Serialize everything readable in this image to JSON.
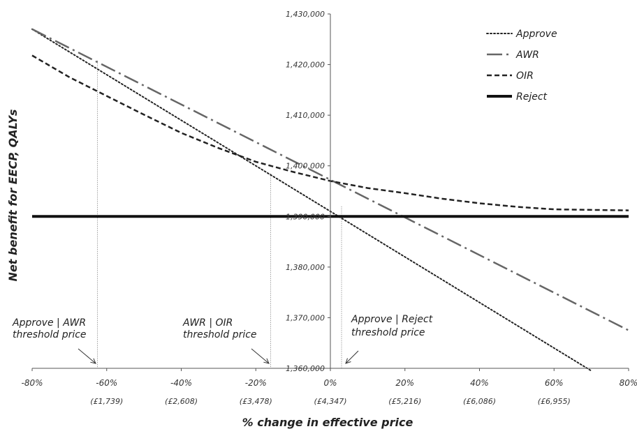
{
  "chart_data": {
    "type": "line",
    "xlabel": "% change in effective price",
    "ylabel": "Net benefit for EECP, QALYs",
    "xlim": [
      -80,
      80
    ],
    "ylim": [
      1360000,
      1430000
    ],
    "x_ticks": [
      "-80%",
      "-60%",
      "-40%",
      "-20%",
      "0%",
      "20%",
      "40%",
      "60%",
      "80%"
    ],
    "x_subticks": [
      "(£1,739)",
      "(£2,608)",
      "(£3,478)",
      "(£4,347)",
      "(£5,216)",
      "(£6,086)",
      "(£6,955)"
    ],
    "y_ticks": [
      "1,360,000",
      "1,370,000",
      "1,380,000",
      "1,390,000",
      "1,400,000",
      "1,410,000",
      "1,420,000",
      "1,430,000"
    ],
    "legend_position": "top-right",
    "series": [
      {
        "name": "Approve",
        "style": "dotted",
        "color": "#222222",
        "x": [
          -80,
          0,
          70
        ],
        "y": [
          1427000,
          1391000,
          1359500
        ]
      },
      {
        "name": "AWR",
        "style": "dashdot",
        "color": "#666666",
        "x": [
          -80,
          80
        ],
        "y": [
          1427000,
          1367500
        ]
      },
      {
        "name": "OIR",
        "style": "dashed",
        "color": "#222222",
        "x": [
          -80,
          -70,
          -60,
          -50,
          -40,
          -30,
          -20,
          -10,
          0,
          10,
          20,
          30,
          40,
          50,
          60,
          70,
          80
        ],
        "y": [
          1421800,
          1417500,
          1413800,
          1410100,
          1406500,
          1403500,
          1400800,
          1398800,
          1397000,
          1395600,
          1394600,
          1393500,
          1392600,
          1391900,
          1391400,
          1391300,
          1391200
        ]
      },
      {
        "name": "Reject",
        "style": "solid",
        "color": "#111111",
        "x": [
          -80,
          80
        ],
        "y": [
          1390000,
          1390000
        ]
      }
    ],
    "threshold_lines": [
      -62.5,
      -16,
      3
    ],
    "annotations": [
      {
        "lines": [
          "Approve | AWR",
          "threshold price"
        ]
      },
      {
        "lines": [
          "AWR | OIR",
          "threshold price"
        ]
      },
      {
        "lines": [
          "Approve | Reject",
          "threshold price"
        ]
      }
    ]
  }
}
